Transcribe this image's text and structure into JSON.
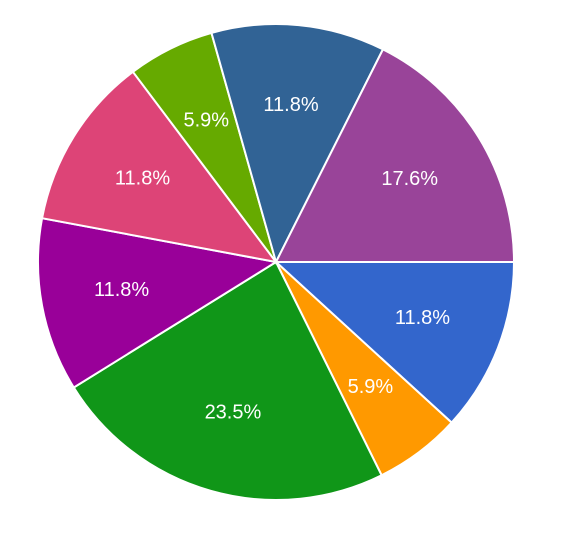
{
  "chart_data": {
    "type": "pie",
    "values": [
      11.8,
      5.9,
      23.5,
      11.8,
      11.8,
      5.9,
      11.8,
      17.6
    ],
    "value_labels": [
      "11.8%",
      "5.9%",
      "23.5%",
      "11.8%",
      "11.8%",
      "5.9%",
      "11.8%",
      "17.6%"
    ],
    "colors": [
      "#3366cc",
      "#ff9900",
      "#109618",
      "#990099",
      "#dd4477",
      "#66aa00",
      "#316395",
      "#994499"
    ]
  }
}
